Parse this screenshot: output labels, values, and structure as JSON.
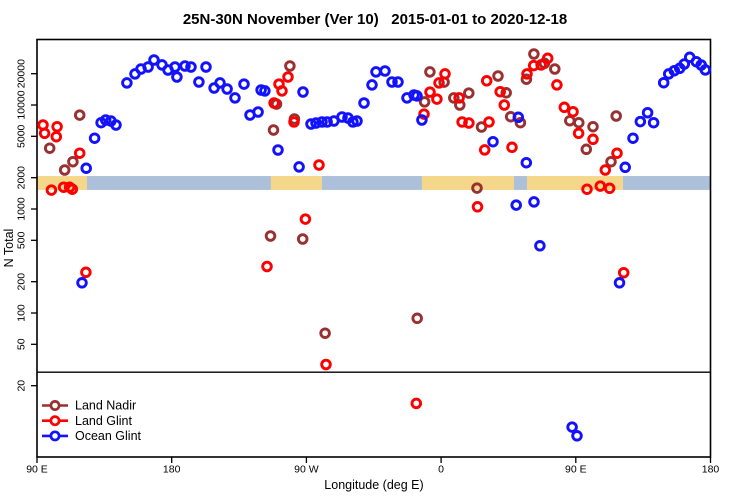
{
  "title": "25N-30N November (Ver 10)   2015-01-01 to 2020-12-18",
  "axes": {
    "y_label": "N Total",
    "x_label": "Longitude (deg E)",
    "y_scale": "log",
    "y_ticks": [
      {
        "value": 20000,
        "label": "20000"
      },
      {
        "value": 10000,
        "label": "10000"
      },
      {
        "value": 5000,
        "label": "5000"
      },
      {
        "value": 2000,
        "label": "2000"
      },
      {
        "value": 1000,
        "label": "1000"
      },
      {
        "value": 500,
        "label": "500"
      },
      {
        "value": 200,
        "label": "200"
      },
      {
        "value": 100,
        "label": "100"
      },
      {
        "value": 50,
        "label": "50"
      },
      {
        "value": 20,
        "label": "20"
      }
    ],
    "x_ticks": [
      {
        "lon": 90,
        "label": "90 E"
      },
      {
        "lon": 180,
        "label": "180"
      },
      {
        "lon": 270,
        "label": "90 W"
      },
      {
        "lon": 360,
        "label": "0"
      },
      {
        "lon": 450,
        "label": "90 E"
      },
      {
        "lon": 540,
        "label": "180"
      }
    ]
  },
  "legend": {
    "items": [
      {
        "label": "Land Nadir",
        "color": "#993131"
      },
      {
        "label": "Land Glint",
        "color": "#FF0000"
      },
      {
        "label": "Ocean Glint",
        "color": "#1212FF"
      }
    ]
  },
  "chart_data": {
    "type": "scatter",
    "title": "25N-30N November (Ver 10)   2015-01-01 to 2020-12-18",
    "xlabel": "Longitude (deg E)",
    "ylabel": "N Total",
    "x_axis_note": "longitude in degrees East, extended 90E..540 (wraps 90E>180>90W>0>90E>180)",
    "xlim": [
      90,
      540
    ],
    "ylim": [
      4,
      43000
    ],
    "y_scale": "log",
    "grid": false,
    "legend_position": "bottom-left",
    "marker": "open-circle",
    "reference_line": {
      "y_value": 27
    },
    "map_strip": {
      "description": "land/ocean coastline band of the 25N-30N latitude belt",
      "value_range": [
        1525,
        2075
      ],
      "ocean_color": "#ACC0DA",
      "land_color": "#F5D78A",
      "segments": [
        {
          "from": 90,
          "to": 123.4,
          "type": "land"
        },
        {
          "from": 123.4,
          "to": 246.3,
          "type": "ocean"
        },
        {
          "from": 246.3,
          "to": 280.4,
          "type": "land"
        },
        {
          "from": 280.4,
          "to": 347.2,
          "type": "ocean"
        },
        {
          "from": 347.2,
          "to": 408.7,
          "type": "land"
        },
        {
          "from": 408.7,
          "to": 417.4,
          "type": "ocean"
        },
        {
          "from": 417.4,
          "to": 481.5,
          "type": "land"
        },
        {
          "from": 481.5,
          "to": 540,
          "type": "ocean"
        }
      ]
    },
    "series": [
      {
        "name": "Land Nadir",
        "color": "#993131",
        "points": [
          [
            118.5,
            8000
          ],
          [
            98.5,
            3840
          ],
          [
            114,
            2850
          ],
          [
            108.5,
            2370
          ],
          [
            259,
            23700
          ],
          [
            250,
            10200
          ],
          [
            262,
            7340
          ],
          [
            248,
            5750
          ],
          [
            352.5,
            20800
          ],
          [
            362,
            16600
          ],
          [
            349,
            10700
          ],
          [
            368.5,
            11700
          ],
          [
            372.5,
            10000
          ],
          [
            378.5,
            13000
          ],
          [
            387,
            6140
          ],
          [
            384,
            1590
          ],
          [
            398,
            19000
          ],
          [
            403.5,
            13100
          ],
          [
            406.5,
            7720
          ],
          [
            413,
            6760
          ],
          [
            422,
            30900
          ],
          [
            429,
            25200
          ],
          [
            436,
            22200
          ],
          [
            417,
            17700
          ],
          [
            446,
            7060
          ],
          [
            452,
            6760
          ],
          [
            461.5,
            6190
          ],
          [
            457,
            3750
          ],
          [
            473.5,
            2850
          ],
          [
            477,
            7830
          ],
          [
            246,
            550
          ],
          [
            267.5,
            515
          ],
          [
            282.5,
            64
          ],
          [
            344,
            89
          ]
        ]
      },
      {
        "name": "Land Glint",
        "color": "#FF0000",
        "points": [
          [
            94,
            6420
          ],
          [
            95.1,
            5350
          ],
          [
            103.4,
            6190
          ],
          [
            102.9,
            4960
          ],
          [
            118.5,
            3440
          ],
          [
            99.6,
            1520
          ],
          [
            107.8,
            1620
          ],
          [
            111.8,
            1620
          ],
          [
            113.6,
            1550
          ],
          [
            122.7,
            246
          ],
          [
            257.7,
            18600
          ],
          [
            251.7,
            15900
          ],
          [
            253.7,
            13650
          ],
          [
            248.4,
            10450
          ],
          [
            261.7,
            6860
          ],
          [
            278.4,
            2650
          ],
          [
            362.6,
            19900
          ],
          [
            358.6,
            16300
          ],
          [
            352.6,
            13300
          ],
          [
            357.2,
            11400
          ],
          [
            348.6,
            8180
          ],
          [
            372,
            11700
          ],
          [
            374,
            6860
          ],
          [
            378.6,
            6710
          ],
          [
            392,
            6860
          ],
          [
            384.3,
            1050
          ],
          [
            390.5,
            17100
          ],
          [
            389.1,
            3700
          ],
          [
            431.2,
            28100
          ],
          [
            421.9,
            23900
          ],
          [
            426.8,
            24300
          ],
          [
            417.4,
            19900
          ],
          [
            437.4,
            15600
          ],
          [
            399.5,
            13430
          ],
          [
            402.2,
            10000
          ],
          [
            407.4,
            3920
          ],
          [
            442.3,
            9510
          ],
          [
            448.1,
            8630
          ],
          [
            451.9,
            5350
          ],
          [
            461.5,
            4680
          ],
          [
            477.5,
            3440
          ],
          [
            469.7,
            2370
          ],
          [
            457.5,
            1550
          ],
          [
            466.4,
            1660
          ],
          [
            472.6,
            1580
          ],
          [
            482,
            244
          ],
          [
            269.3,
            800
          ],
          [
            243.7,
            280
          ],
          [
            283.1,
            32
          ],
          [
            343.4,
            13.5
          ]
        ]
      },
      {
        "name": "Ocean Glint",
        "color": "#1212FF",
        "points": [
          [
            132.8,
            6760
          ],
          [
            135.9,
            7180
          ],
          [
            139.4,
            7020
          ],
          [
            142.8,
            6420
          ],
          [
            128.5,
            4790
          ],
          [
            122.9,
            2470
          ],
          [
            120.1,
            195
          ],
          [
            150.1,
            16300
          ],
          [
            155.5,
            19900
          ],
          [
            159.5,
            22200
          ],
          [
            164.2,
            23200
          ],
          [
            168.2,
            27100
          ],
          [
            173.5,
            24300
          ],
          [
            177.5,
            21700
          ],
          [
            182.2,
            23200
          ],
          [
            183.5,
            18600
          ],
          [
            188.9,
            23700
          ],
          [
            192.9,
            23200
          ],
          [
            202.9,
            23200
          ],
          [
            198.2,
            16640
          ],
          [
            208.3,
            14560
          ],
          [
            212.3,
            16300
          ],
          [
            217,
            14260
          ],
          [
            222.3,
            11700
          ],
          [
            228.3,
            15900
          ],
          [
            232.3,
            8020
          ],
          [
            237.7,
            8570
          ],
          [
            239.7,
            13930
          ],
          [
            242.3,
            13650
          ],
          [
            267.7,
            13340
          ],
          [
            251,
            3690
          ],
          [
            265.1,
            2540
          ],
          [
            273.1,
            6560
          ],
          [
            276.4,
            6710
          ],
          [
            280.4,
            6860
          ],
          [
            283.8,
            6860
          ],
          [
            288.4,
            7020
          ],
          [
            293.8,
            7670
          ],
          [
            297.8,
            7500
          ],
          [
            301.1,
            6860
          ],
          [
            303.8,
            7020
          ],
          [
            308.5,
            10450
          ],
          [
            313.8,
            15600
          ],
          [
            316.5,
            20800
          ],
          [
            322.5,
            21230
          ],
          [
            327.2,
            16640
          ],
          [
            331.2,
            16640
          ],
          [
            337.2,
            11700
          ],
          [
            341.9,
            12470
          ],
          [
            343.9,
            12220
          ],
          [
            347.2,
            7180
          ],
          [
            411.6,
            7620
          ],
          [
            394.7,
            4440
          ],
          [
            416.9,
            2790
          ],
          [
            488.2,
            4790
          ],
          [
            493.1,
            6920
          ],
          [
            498,
            8430
          ],
          [
            502,
            6760
          ],
          [
            483,
            2520
          ],
          [
            508.7,
            16370
          ],
          [
            512.1,
            19900
          ],
          [
            515.8,
            21380
          ],
          [
            519.4,
            22540
          ],
          [
            522.5,
            24770
          ],
          [
            526.1,
            28770
          ],
          [
            530.5,
            26060
          ],
          [
            533.8,
            24270
          ],
          [
            536.5,
            21730
          ],
          [
            410.2,
            1090
          ],
          [
            422.1,
            1170
          ],
          [
            426,
            443
          ],
          [
            479.2,
            195
          ],
          [
            447.5,
            8
          ],
          [
            450.8,
            6.6
          ]
        ]
      }
    ]
  }
}
